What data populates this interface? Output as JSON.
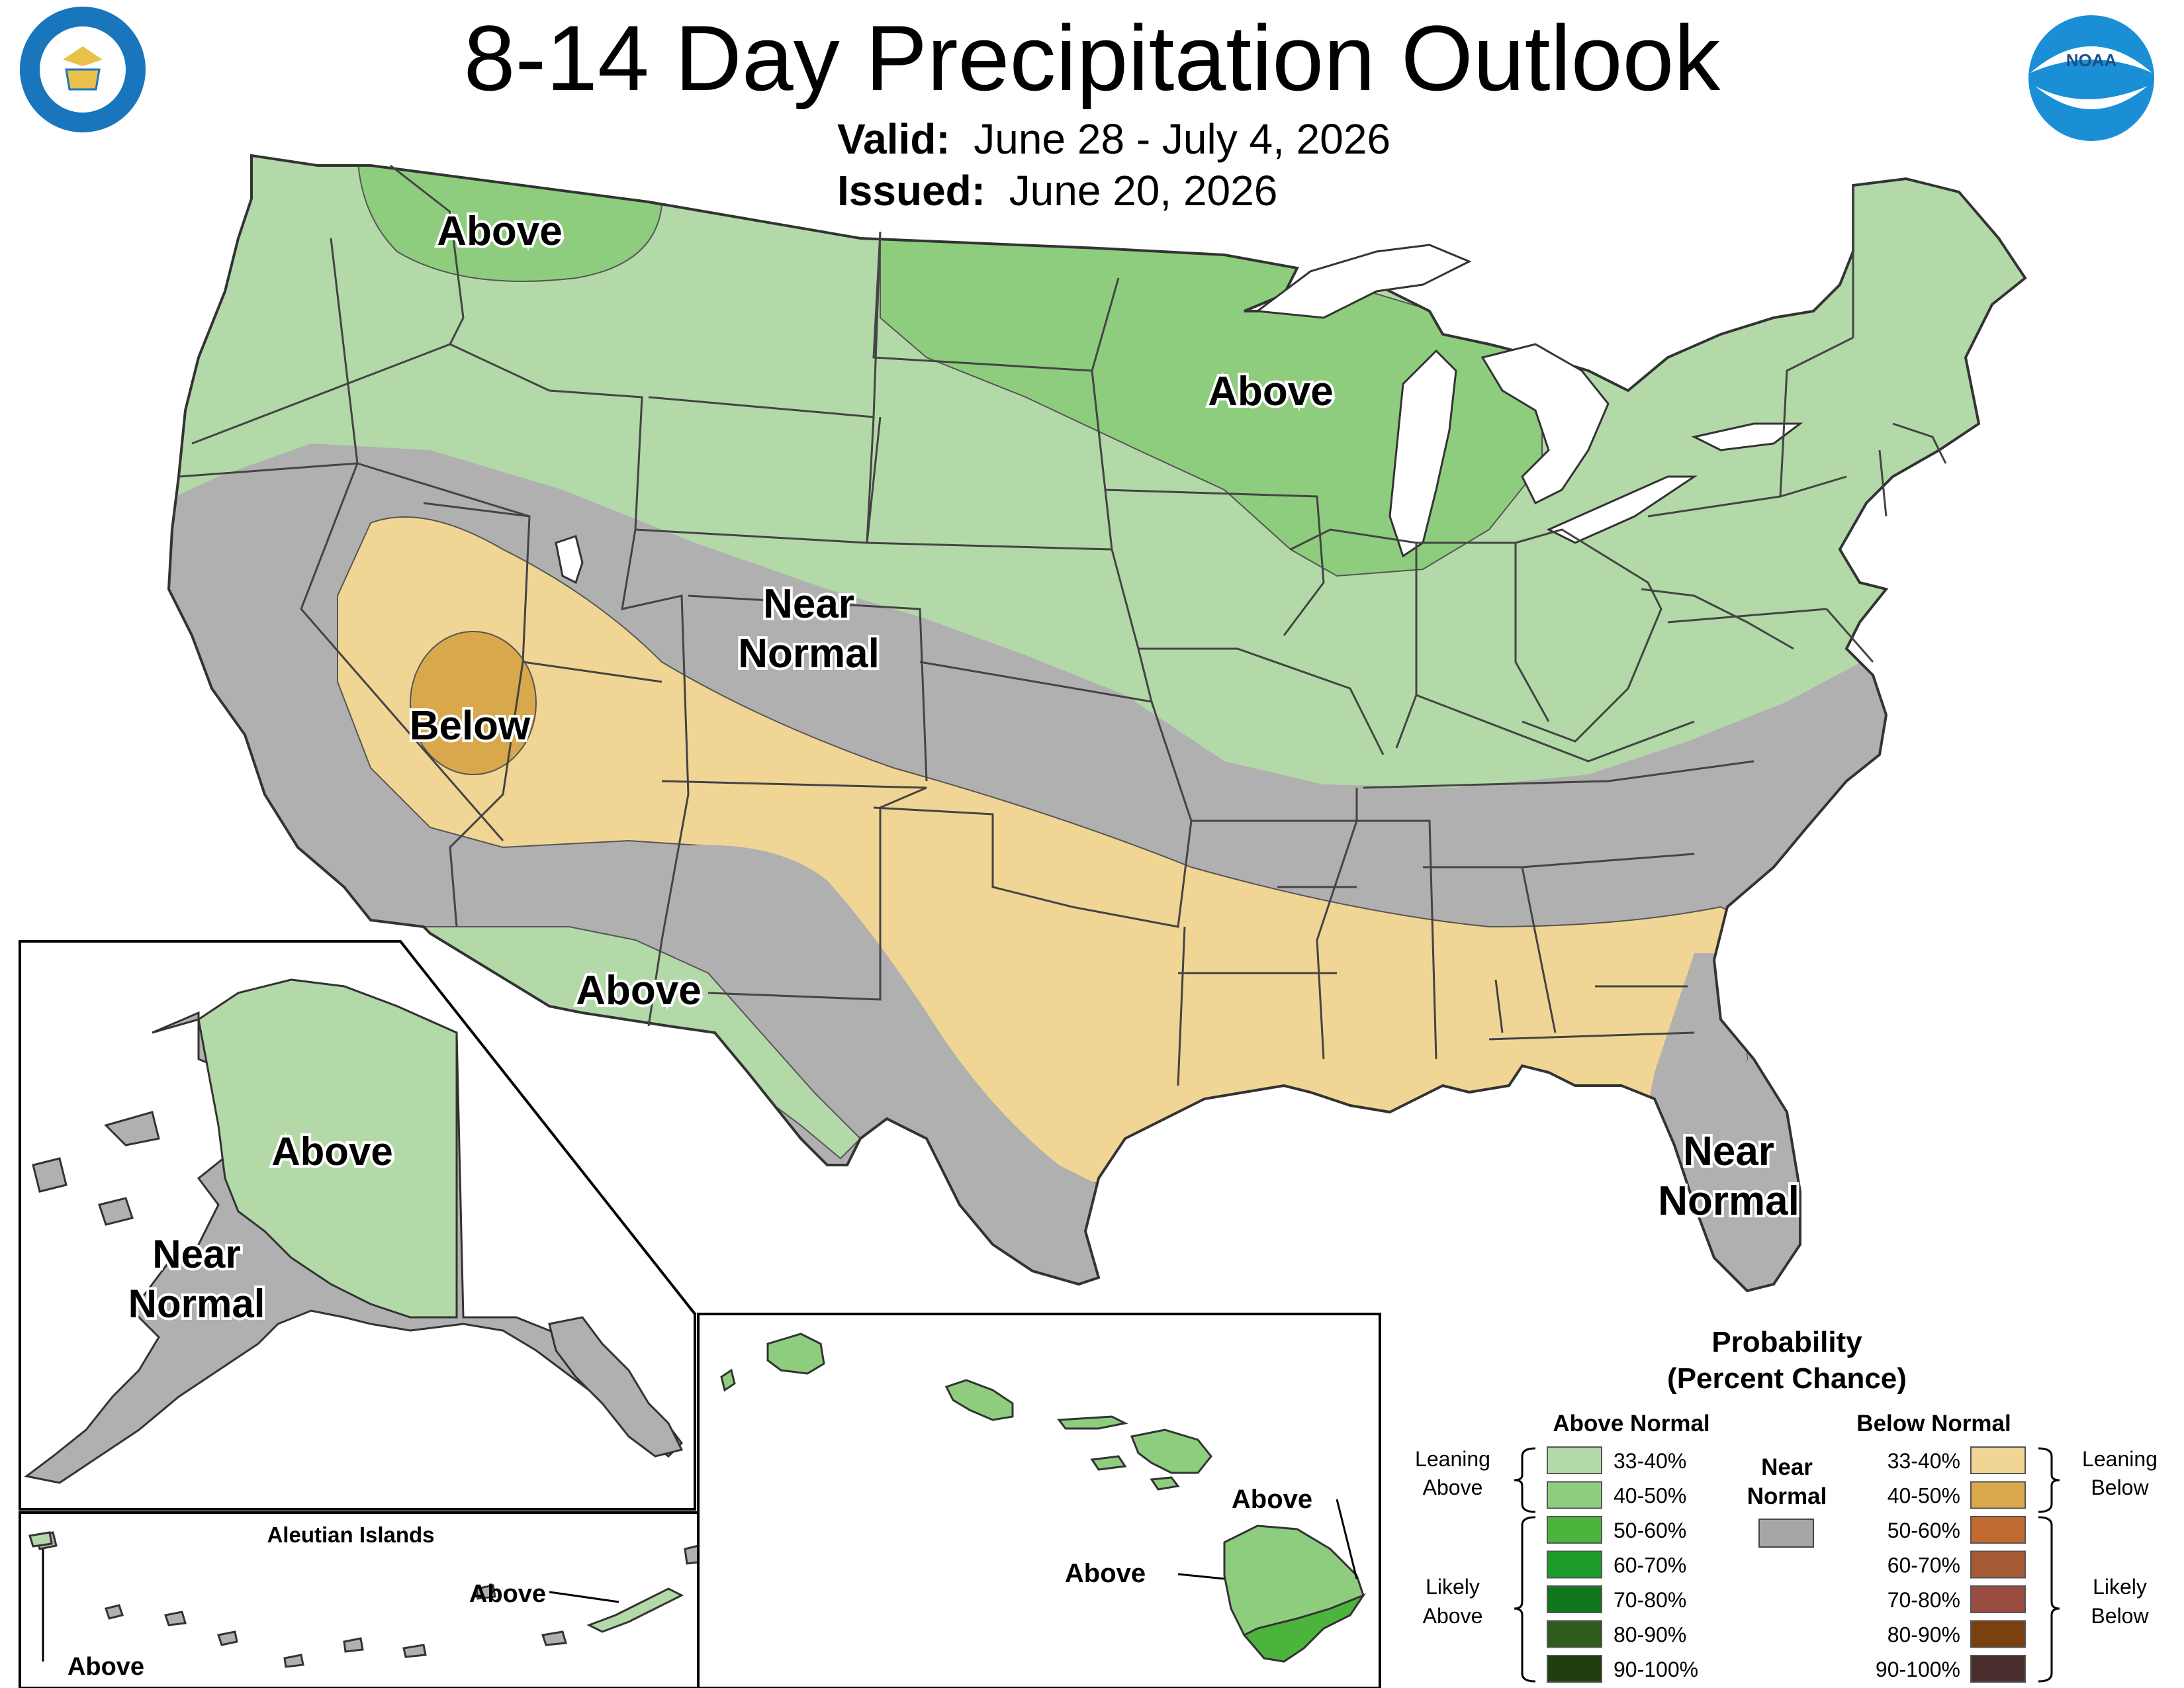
{
  "header": {
    "title": "8-14 Day Precipitation Outlook",
    "valid_label": "Valid:",
    "valid_value": "June 28 - July 4, 2026",
    "issued_label": "Issued:",
    "issued_value": "June 20, 2026"
  },
  "logos": {
    "commerce": "DEPARTMENT OF COMMERCE · UNITED STATES OF AMERICA",
    "noaa": "NOAA"
  },
  "region_labels": {
    "conus_above_nw": "Above",
    "conus_above_midwest": "Above",
    "conus_near_normal_west": [
      "Near",
      "Normal"
    ],
    "conus_below": "Below",
    "conus_above_sw": "Above",
    "conus_near_normal_fl": [
      "Near",
      "Normal"
    ],
    "ak_above": "Above",
    "ak_near_normal": [
      "Near",
      "Normal"
    ],
    "aleutian_title": "Aleutian Islands",
    "aleutian_above_east": "Above",
    "aleutian_above_west": "Above",
    "hi_above_upper": "Above",
    "hi_above_left": "Above"
  },
  "legend": {
    "title": [
      "Probability",
      "(Percent Chance)"
    ],
    "above_header": "Above Normal",
    "below_header": "Below Normal",
    "near_header": [
      "Near",
      "Normal"
    ],
    "leaning_above": [
      "Leaning",
      "Above"
    ],
    "likely_above": [
      "Likely",
      "Above"
    ],
    "leaning_below": [
      "Leaning",
      "Below"
    ],
    "likely_below": [
      "Likely",
      "Below"
    ],
    "ranges": [
      "33-40%",
      "40-50%",
      "50-60%",
      "60-70%",
      "70-80%",
      "80-90%",
      "90-100%"
    ],
    "above_colors": [
      "#b3d9a9",
      "#8fcd7e",
      "#4cb43c",
      "#1a9b2a",
      "#11771c",
      "#2f5c1c",
      "#1f3f0f"
    ],
    "below_colors": [
      "#f1d594",
      "#d9a84c",
      "#c06a32",
      "#a55a33",
      "#9a4c40",
      "#7a4010",
      "#4a2e2e"
    ],
    "near_color": "#a6a6a6"
  },
  "category_colors": {
    "above_33_40": "#b3d9a9",
    "above_40_50": "#8fcd7e",
    "above_50_60": "#4cb43c",
    "near_normal": "#b0b0b0",
    "below_33_40": "#f1d594",
    "below_40_50": "#d9a84c"
  }
}
